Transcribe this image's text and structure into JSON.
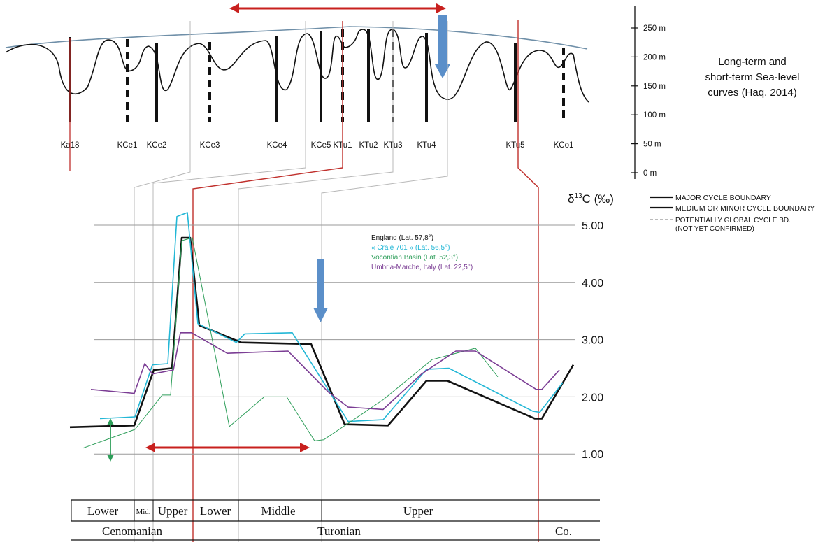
{
  "sea_level": {
    "caption": [
      "Long-term and",
      "short-term Sea-level",
      "curves (Haq, 2014)"
    ],
    "ticks": [
      "250 m",
      "200 m",
      "150 m",
      "100 m",
      "50 m",
      "0 m"
    ],
    "tick_values": [
      250,
      200,
      150,
      100,
      50,
      0
    ],
    "boundaries": [
      {
        "name": "Ka18",
        "style": "solid"
      },
      {
        "name": "KCe1",
        "style": "dashed"
      },
      {
        "name": "KCe2",
        "style": "solid"
      },
      {
        "name": "KCe3",
        "style": "dashed"
      },
      {
        "name": "KCe4",
        "style": "solid"
      },
      {
        "name": "KCe5",
        "style": "solid"
      },
      {
        "name": "KTu1",
        "style": "dashed"
      },
      {
        "name": "KTu2",
        "style": "solid"
      },
      {
        "name": "KTu3",
        "style": "dashed"
      },
      {
        "name": "KTu4",
        "style": "solid"
      },
      {
        "name": "KTu5",
        "style": "solid"
      },
      {
        "name": "KCo1",
        "style": "dashed"
      }
    ]
  },
  "legend": {
    "major": "MAJOR CYCLE BOUNDARY",
    "medium": "MEDIUM OR MINOR CYCLE BOUNDARY",
    "potential": [
      "POTENTIALLY GLOBAL CYCLE BD.",
      "(NOT YET CONFIRMED)"
    ]
  },
  "chart_data": {
    "type": "line",
    "ylabel": "δ13C (‰)",
    "ylabel_base": "δ",
    "ylabel_sup": "13",
    "ylabel_rest": "C (‰)",
    "ylim": [
      0.6,
      5.3
    ],
    "yticks": [
      "5.00",
      "4.00",
      "3.00",
      "2.00",
      "1.00"
    ],
    "ytick_values": [
      5,
      4,
      3,
      2,
      1
    ],
    "grid": true,
    "series": [
      {
        "name": "England (Lat. 57,8°)",
        "color": "#111111",
        "x": [
          100,
          192,
          220,
          246,
          260,
          272,
          285,
          345,
          445,
          493,
          555,
          610,
          640,
          765,
          775,
          820
        ],
        "y": [
          1.47,
          1.5,
          2.47,
          2.5,
          4.78,
          4.78,
          3.25,
          2.95,
          2.92,
          1.52,
          1.5,
          2.28,
          2.28,
          1.62,
          1.62,
          2.56
        ]
      },
      {
        "name": "« Craie 701 » (Lat. 56,5°)",
        "color": "#23b7d6",
        "x": [
          143,
          193,
          218,
          240,
          253,
          268,
          283,
          338,
          350,
          418,
          498,
          548,
          610,
          642,
          762,
          772,
          805
        ],
        "y": [
          1.62,
          1.65,
          2.56,
          2.58,
          5.15,
          5.22,
          3.28,
          2.95,
          3.1,
          3.12,
          1.57,
          1.6,
          2.48,
          2.5,
          1.75,
          1.73,
          2.25
        ]
      },
      {
        "name": "Vocontian Basin (Lat. 52,3°)",
        "color": "#2e9e5a",
        "x": [
          118,
          193,
          232,
          244,
          260,
          275,
          328,
          378,
          410,
          450,
          463,
          548,
          618,
          680,
          712
        ],
        "y": [
          1.1,
          1.43,
          2.03,
          2.03,
          4.73,
          4.78,
          1.48,
          2.0,
          2.0,
          1.23,
          1.25,
          1.95,
          2.65,
          2.85,
          2.35
        ]
      },
      {
        "name": "Umbria-Marche, Italy (Lat. 22,5°)",
        "color": "#7b3d94",
        "x": [
          130,
          192,
          207,
          218,
          248,
          258,
          274,
          325,
          412,
          470,
          498,
          548,
          603,
          652,
          680,
          767,
          775,
          800
        ],
        "y": [
          2.13,
          2.06,
          2.58,
          2.4,
          2.47,
          3.12,
          3.12,
          2.76,
          2.8,
          2.08,
          1.82,
          1.78,
          2.4,
          2.8,
          2.8,
          2.13,
          2.13,
          2.47
        ]
      }
    ]
  },
  "stratigraphy": {
    "substages": [
      "Lower",
      "Mid.",
      "Upper",
      "Lower",
      "Middle",
      "Upper",
      ""
    ],
    "stages": [
      "Cenomanian",
      "Turonian",
      "Co."
    ]
  }
}
